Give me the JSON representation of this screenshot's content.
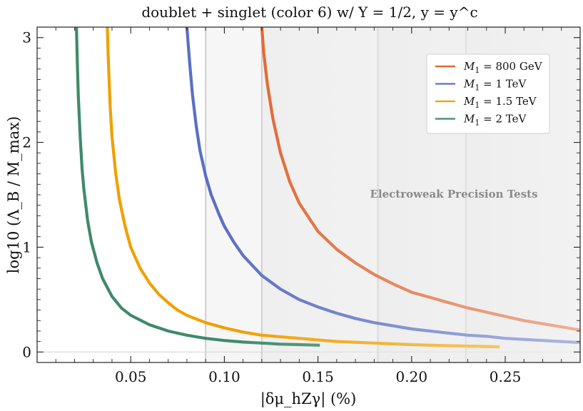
{
  "chart_data": {
    "type": "line",
    "title": "doublet + singlet (color 6) w/ Y = 1/2,  y = y^c",
    "xlabel": "|δμ_hZγ| (%)",
    "ylabel": "log10 (Λ_B / M_max)",
    "xlim": [
      0.0,
      0.29
    ],
    "ylim": [
      -0.1,
      3.1
    ],
    "xticks": [
      0.05,
      0.1,
      0.15,
      0.2,
      0.25
    ],
    "xtick_labels": [
      "0.05",
      "0.10",
      "0.15",
      "0.20",
      "0.25"
    ],
    "yticks": [
      0,
      1,
      2,
      3
    ],
    "ytick_labels": [
      "0",
      "1",
      "2",
      "3"
    ],
    "grid": false,
    "legend_position": "top-right",
    "shaded_region_label": "Electroweak Precision Tests",
    "shaded_bands": [
      {
        "x0": 0.09,
        "x1": 0.12,
        "opacity": 0.035
      },
      {
        "x0": 0.12,
        "x1": 0.182,
        "opacity": 0.065
      },
      {
        "x0": 0.182,
        "x1": 0.229,
        "opacity": 0.085
      },
      {
        "x0": 0.229,
        "x1": 0.29,
        "opacity": 0.1
      }
    ],
    "series": [
      {
        "name": "M1 = 800 GeV",
        "legend_main": "M",
        "legend_sub": "1",
        "legend_value": " = 800 GeV",
        "color": "#e0622c",
        "x": [
          0.12,
          0.121,
          0.123,
          0.126,
          0.13,
          0.135,
          0.14,
          0.15,
          0.16,
          0.17,
          0.18,
          0.19,
          0.2,
          0.21,
          0.22,
          0.23,
          0.24,
          0.25,
          0.26,
          0.27,
          0.28,
          0.29
        ],
        "y": [
          3.1,
          2.86,
          2.55,
          2.22,
          1.9,
          1.62,
          1.42,
          1.15,
          0.98,
          0.85,
          0.74,
          0.65,
          0.57,
          0.52,
          0.47,
          0.42,
          0.38,
          0.34,
          0.3,
          0.27,
          0.24,
          0.21
        ]
      },
      {
        "name": "M1 = 1 TeV",
        "legend_main": "M",
        "legend_sub": "1",
        "legend_value": " = 1 TeV",
        "color": "#5a6fc4",
        "x": [
          0.08,
          0.0815,
          0.083,
          0.085,
          0.087,
          0.09,
          0.093,
          0.097,
          0.1,
          0.105,
          0.11,
          0.12,
          0.13,
          0.14,
          0.15,
          0.16,
          0.17,
          0.18,
          0.19,
          0.2,
          0.21,
          0.22,
          0.23,
          0.24,
          0.25,
          0.26,
          0.27,
          0.28,
          0.29
        ],
        "y": [
          3.1,
          2.75,
          2.45,
          2.15,
          1.92,
          1.68,
          1.5,
          1.32,
          1.2,
          1.05,
          0.92,
          0.73,
          0.6,
          0.5,
          0.43,
          0.37,
          0.32,
          0.28,
          0.25,
          0.22,
          0.2,
          0.18,
          0.16,
          0.15,
          0.13,
          0.12,
          0.11,
          0.1,
          0.09
        ]
      },
      {
        "name": "M1 = 1.5 TeV",
        "legend_main": "M",
        "legend_sub": "1",
        "legend_value": " = 1.5 TeV",
        "color": "#f0a000",
        "x": [
          0.0375,
          0.038,
          0.039,
          0.04,
          0.042,
          0.044,
          0.047,
          0.05,
          0.055,
          0.06,
          0.065,
          0.07,
          0.075,
          0.08,
          0.09,
          0.1,
          0.11,
          0.12,
          0.14,
          0.16,
          0.18,
          0.2,
          0.22,
          0.247
        ],
        "y": [
          3.1,
          2.8,
          2.35,
          2.05,
          1.7,
          1.45,
          1.2,
          1.0,
          0.8,
          0.66,
          0.55,
          0.47,
          0.4,
          0.35,
          0.28,
          0.23,
          0.19,
          0.16,
          0.13,
          0.1,
          0.085,
          0.07,
          0.06,
          0.05
        ]
      },
      {
        "name": "M1 = 2 TeV",
        "legend_main": "M",
        "legend_sub": "1",
        "legend_value": " = 2 TeV",
        "color": "#3f8a6c",
        "x": [
          0.021,
          0.0215,
          0.022,
          0.023,
          0.024,
          0.025,
          0.027,
          0.029,
          0.032,
          0.035,
          0.04,
          0.045,
          0.05,
          0.06,
          0.07,
          0.08,
          0.09,
          0.1,
          0.11,
          0.12,
          0.13,
          0.14,
          0.151
        ],
        "y": [
          3.1,
          2.75,
          2.45,
          2.05,
          1.75,
          1.55,
          1.25,
          1.05,
          0.85,
          0.7,
          0.53,
          0.42,
          0.35,
          0.26,
          0.2,
          0.16,
          0.13,
          0.11,
          0.095,
          0.085,
          0.075,
          0.07,
          0.065
        ]
      }
    ]
  }
}
